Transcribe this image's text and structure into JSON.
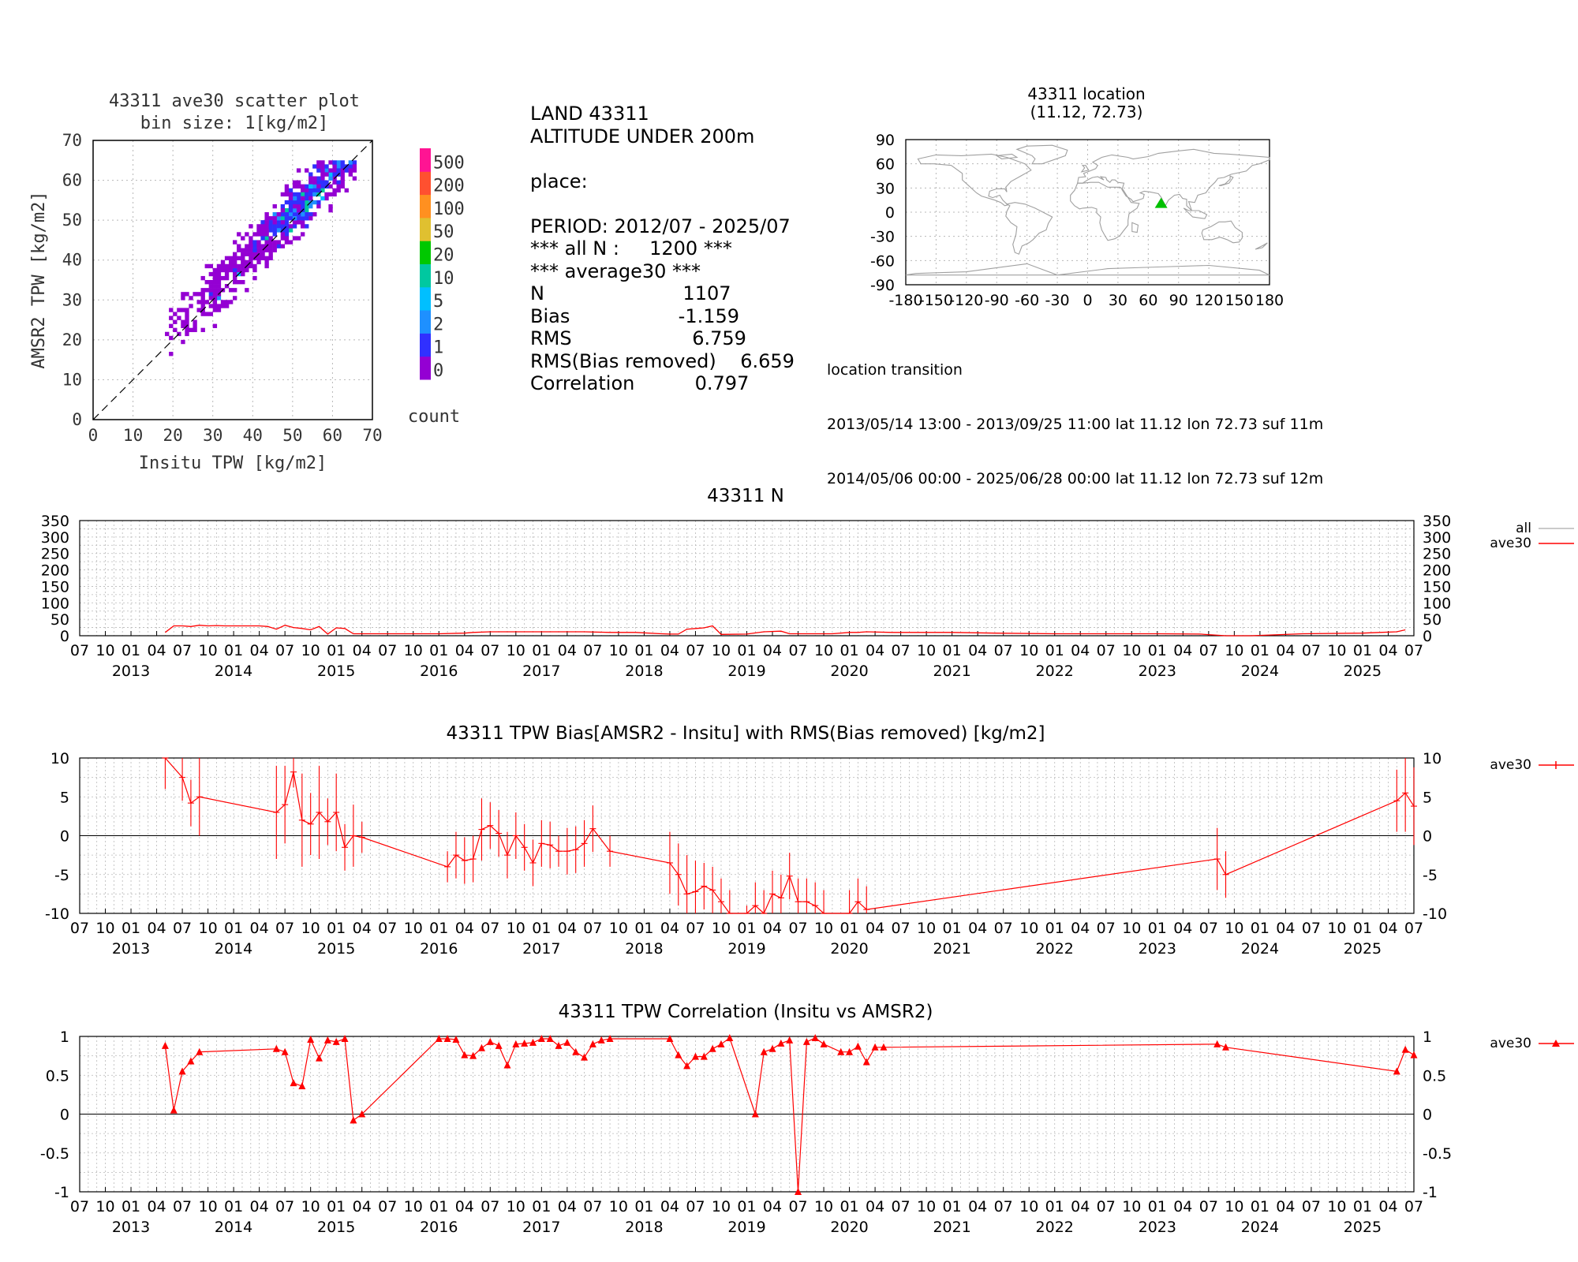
{
  "colors": {
    "red": "#ff0000",
    "grid": "#b8b8b8",
    "green": "#00c000",
    "land": "#a0a0a0"
  },
  "scatter": {
    "title": "43311 ave30 scatter plot",
    "subtitle": "bin size: 1[kg/m2]",
    "xlabel": "Insitu TPW [kg/m2]",
    "ylabel": "AMSR2 TPW [kg/m2]",
    "ticks": [
      "0",
      "10",
      "20",
      "30",
      "40",
      "50",
      "60",
      "70"
    ],
    "colorbar_labels": [
      "0",
      "1",
      "2",
      "5",
      "10",
      "20",
      "50",
      "100",
      "200",
      "500"
    ],
    "colorbar_colors": [
      "#9400d3",
      "#3030ff",
      "#1e90ff",
      "#00bfff",
      "#00c8a0",
      "#00c800",
      "#e0c030",
      "#ff9020",
      "#ff5030",
      "#ff1493"
    ],
    "colorbar_title": "count"
  },
  "stats": {
    "lines": [
      "LAND 43311",
      "ALTITUDE UNDER 200m",
      "",
      "place:",
      "",
      "PERIOD: 2012/07 - 2025/07",
      "*** all N :     1200 ***",
      "*** average30 ***",
      "N                       1107",
      "Bias                  -1.159",
      "RMS                    6.759",
      "RMS(Bias removed)    6.659",
      "Correlation          0.797"
    ]
  },
  "map": {
    "title": "43311 location",
    "subtitle": "(11.12, 72.73)",
    "lat": 11.12,
    "lon": 72.73,
    "yticks": [
      "90",
      "60",
      "30",
      "0",
      "-30",
      "-60",
      "-90"
    ],
    "xticks": [
      "-180",
      "-150",
      "-120",
      "-90",
      "-60",
      "-30",
      "0",
      "30",
      "60",
      "90",
      "120",
      "150",
      "180"
    ]
  },
  "transition": {
    "title": "location transition",
    "lines": [
      "2013/05/14 13:00 - 2013/09/25 11:00 lat 11.12 lon 72.73 suf 11m",
      "2014/05/06 00:00 - 2025/06/28 00:00 lat 11.12 lon 72.73 suf 12m"
    ]
  },
  "time_axis": {
    "month_labels": [
      "07",
      "10",
      "01",
      "04",
      "07",
      "10",
      "01",
      "04",
      "07",
      "10",
      "01",
      "04",
      "07",
      "10",
      "01",
      "04",
      "07",
      "10",
      "01",
      "04",
      "07",
      "10",
      "01",
      "04",
      "07",
      "10",
      "01",
      "04",
      "07",
      "10",
      "01",
      "04",
      "07",
      "10",
      "01",
      "04",
      "07",
      "10",
      "01",
      "04",
      "07",
      "10",
      "01",
      "04",
      "07",
      "10",
      "01",
      "04",
      "07",
      "10",
      "01",
      "04",
      "07"
    ],
    "year_labels": [
      "2013",
      "2014",
      "2015",
      "2016",
      "2017",
      "2018",
      "2019",
      "2020",
      "2021",
      "2022",
      "2023",
      "2024",
      "2025"
    ]
  },
  "chart_data": [
    {
      "type": "scatter",
      "title": "43311 ave30 scatter plot",
      "subtitle": "bin size: 1[kg/m2]",
      "xlabel": "Insitu TPW [kg/m2]",
      "ylabel": "AMSR2 TPW [kg/m2]",
      "xlim": [
        0,
        70
      ],
      "ylim": [
        0,
        70
      ],
      "colorbar": "count"
    },
    {
      "type": "line",
      "title": "43311 N",
      "ylim": [
        0,
        350
      ],
      "yticks": [
        "0",
        "50",
        "100",
        "150",
        "200",
        "250",
        "300",
        "350"
      ],
      "legend": [
        "all",
        "ave30"
      ],
      "series": [
        {
          "name": "ave30",
          "x": [
            "2013-05",
            "2013-06",
            "2013-07",
            "2013-08",
            "2013-09",
            "2013-10",
            "2013-11",
            "2013-12",
            "2014-01",
            "2014-02",
            "2014-03",
            "2014-04",
            "2014-05",
            "2014-06",
            "2014-07",
            "2014-08",
            "2014-09",
            "2014-10",
            "2014-11",
            "2014-12",
            "2015-01",
            "2015-02",
            "2015-03",
            "2015-06",
            "2015-10",
            "2016-01",
            "2016-04",
            "2016-05",
            "2016-07",
            "2016-09",
            "2016-12",
            "2017-03",
            "2017-06",
            "2017-09",
            "2017-12",
            "2018-03",
            "2018-04",
            "2018-05",
            "2018-06",
            "2018-07",
            "2018-08",
            "2018-09",
            "2018-10",
            "2019-01",
            "2019-03",
            "2019-05",
            "2019-06",
            "2019-07",
            "2019-09",
            "2019-11",
            "2020-01",
            "2020-02",
            "2020-03",
            "2020-06",
            "2021-01",
            "2021-06",
            "2022-01",
            "2022-06",
            "2023-01",
            "2023-06",
            "2023-09",
            "2023-12",
            "2024-06",
            "2025-01",
            "2025-03",
            "2025-05",
            "2025-06"
          ],
          "y": [
            10,
            30,
            30,
            28,
            32,
            30,
            31,
            30,
            30,
            30,
            30,
            30,
            28,
            20,
            32,
            25,
            22,
            18,
            28,
            5,
            24,
            22,
            6,
            6,
            6,
            6,
            8,
            10,
            12,
            12,
            12,
            12,
            12,
            10,
            10,
            6,
            5,
            5,
            20,
            22,
            24,
            30,
            4,
            5,
            12,
            14,
            6,
            6,
            6,
            6,
            10,
            10,
            12,
            10,
            10,
            8,
            6,
            6,
            6,
            5,
            0,
            0,
            6,
            8,
            10,
            12,
            18
          ]
        }
      ]
    },
    {
      "type": "line",
      "title": "43311 TPW Bias[AMSR2 - Insitu] with RMS(Bias removed) [kg/m2]",
      "ylim": [
        -10,
        10
      ],
      "yticks": [
        "-10",
        "-5",
        "0",
        "5",
        "10"
      ],
      "legend": [
        "ave30"
      ],
      "series": [
        {
          "name": "ave30",
          "x": [
            "2013-05",
            "2013-07",
            "2013-08",
            "2013-09",
            "2014-06",
            "2014-07",
            "2014-08",
            "2014-09",
            "2014-10",
            "2014-11",
            "2014-12",
            "2015-01",
            "2015-02",
            "2015-03",
            "2015-04",
            "2016-02",
            "2016-03",
            "2016-04",
            "2016-05",
            "2016-06",
            "2016-07",
            "2016-08",
            "2016-09",
            "2016-10",
            "2016-11",
            "2016-12",
            "2017-01",
            "2017-02",
            "2017-03",
            "2017-04",
            "2017-05",
            "2017-06",
            "2017-07",
            "2017-09",
            "2018-04",
            "2018-05",
            "2018-06",
            "2018-07",
            "2018-08",
            "2018-09",
            "2018-10",
            "2018-11",
            "2019-01",
            "2019-02",
            "2019-03",
            "2019-04",
            "2019-05",
            "2019-06",
            "2019-07",
            "2019-08",
            "2019-09",
            "2019-10",
            "2020-01",
            "2020-02",
            "2020-03",
            "2023-08",
            "2023-09",
            "2025-05",
            "2025-06",
            "2025-07"
          ],
          "y": [
            11,
            7.5,
            4.2,
            5.0,
            3.0,
            4.0,
            8.2,
            2.0,
            1.5,
            3.0,
            1.8,
            3.0,
            -1.5,
            0,
            -0.2,
            -4.0,
            -2.5,
            -3.2,
            -3.0,
            0.8,
            1.3,
            0.3,
            -2.5,
            0,
            -1.5,
            -3.5,
            -1.0,
            -1.2,
            -2.0,
            -2.0,
            -1.8,
            -1.0,
            0.9,
            -2.0,
            -3.5,
            -5.0,
            -7.5,
            -7.2,
            -6.5,
            -7.0,
            -8.5,
            -10,
            -11,
            -9.0,
            -10,
            -7.5,
            -8.0,
            -5.2,
            -8.5,
            -8.5,
            -9.0,
            -10,
            -10,
            -8.5,
            -9.5,
            -3.0,
            -5.0,
            4.5,
            5.5,
            3.8
          ],
          "err": [
            5,
            3,
            3,
            5,
            6,
            5,
            2,
            6,
            4,
            6,
            3,
            5,
            3,
            4,
            2,
            2,
            3,
            3,
            3,
            4,
            3,
            3,
            3,
            3,
            3,
            3,
            3,
            3,
            2,
            3,
            3,
            3,
            3,
            2,
            4,
            4,
            5,
            4,
            3,
            3,
            3,
            3,
            2,
            3,
            3,
            3,
            3,
            3,
            3,
            3,
            3,
            3,
            3,
            3,
            3,
            4,
            3,
            4,
            5,
            5
          ]
        }
      ]
    },
    {
      "type": "line",
      "title": "43311 TPW Correlation (Insitu vs AMSR2)",
      "ylim": [
        -1,
        1
      ],
      "yticks": [
        "-1",
        "-0.5",
        "0",
        "0.5",
        "1"
      ],
      "legend": [
        "ave30"
      ],
      "series": [
        {
          "name": "ave30",
          "x": [
            "2013-05",
            "2013-06",
            "2013-07",
            "2013-08",
            "2013-09",
            "2014-06",
            "2014-07",
            "2014-08",
            "2014-09",
            "2014-10",
            "2014-11",
            "2014-12",
            "2015-01",
            "2015-02",
            "2015-03",
            "2015-04",
            "2016-01",
            "2016-02",
            "2016-03",
            "2016-04",
            "2016-05",
            "2016-06",
            "2016-07",
            "2016-08",
            "2016-09",
            "2016-10",
            "2016-11",
            "2016-12",
            "2017-01",
            "2017-02",
            "2017-03",
            "2017-04",
            "2017-05",
            "2017-06",
            "2017-07",
            "2017-08",
            "2017-09",
            "2018-04",
            "2018-05",
            "2018-06",
            "2018-07",
            "2018-08",
            "2018-09",
            "2018-10",
            "2018-11",
            "2019-02",
            "2019-03",
            "2019-04",
            "2019-05",
            "2019-06",
            "2019-07",
            "2019-08",
            "2019-09",
            "2019-10",
            "2019-12",
            "2020-01",
            "2020-02",
            "2020-03",
            "2020-04",
            "2020-05",
            "2023-08",
            "2023-09",
            "2025-05",
            "2025-06",
            "2025-07"
          ],
          "y": [
            0.88,
            0.05,
            0.55,
            0.68,
            0.8,
            0.84,
            0.8,
            0.4,
            0.36,
            0.96,
            0.72,
            0.95,
            0.93,
            0.97,
            -0.08,
            0.0,
            0.97,
            0.97,
            0.96,
            0.76,
            0.75,
            0.85,
            0.93,
            0.88,
            0.63,
            0.9,
            0.91,
            0.92,
            0.97,
            0.97,
            0.88,
            0.92,
            0.8,
            0.73,
            0.9,
            0.95,
            0.97,
            0.97,
            0.76,
            0.62,
            0.74,
            0.74,
            0.84,
            0.9,
            0.98,
            0.0,
            0.8,
            0.84,
            0.91,
            0.95,
            -1.0,
            0.93,
            0.98,
            0.9,
            0.8,
            0.8,
            0.87,
            0.67,
            0.86,
            0.86,
            0.9,
            0.86,
            0.55,
            0.83,
            0.76
          ]
        }
      ]
    }
  ],
  "titles": {
    "n": "43311 N",
    "bias": "43311 TPW Bias[AMSR2 - Insitu] with RMS(Bias removed) [kg/m2]",
    "corr": "43311 TPW Correlation (Insitu vs AMSR2)"
  },
  "legend": {
    "all": "all",
    "ave30": "ave30"
  }
}
